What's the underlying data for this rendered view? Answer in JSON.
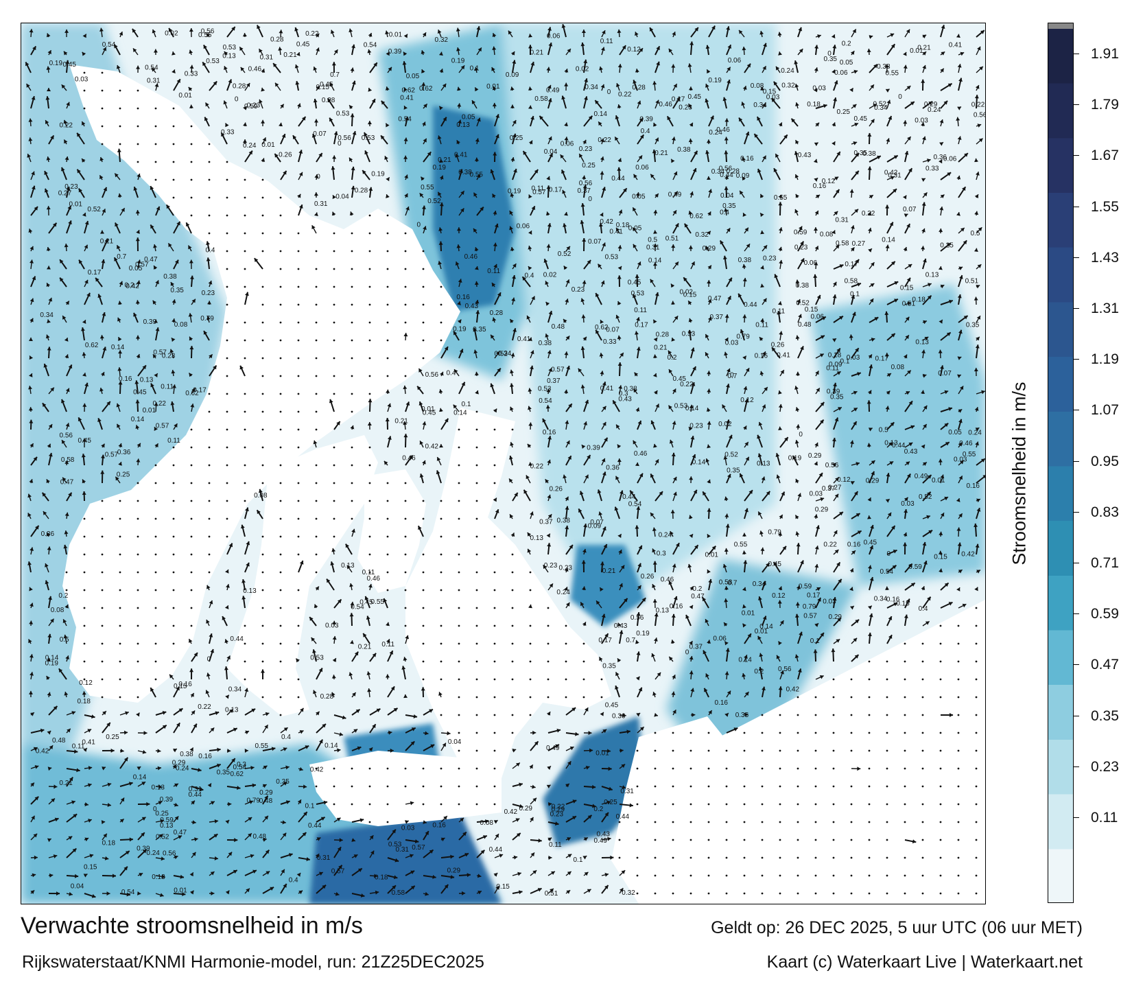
{
  "title": "Verwachte stroomsnelheid in m/s",
  "valid_time": "Geldt op: 26 DEC 2025, 5 uur UTC (06 uur MET)",
  "source": "Rijkswaterstaat/KNMI Harmonie-model, run: 21Z25DEC2025",
  "credit": "Kaart (c) Waterkaart Live | Waterkaart.net",
  "colorbar": {
    "label": "Stroomsnelheid in m/s",
    "ticks": [
      "1.91",
      "1.79",
      "1.67",
      "1.55",
      "1.43",
      "1.31",
      "1.19",
      "1.07",
      "0.95",
      "0.83",
      "0.71",
      "0.59",
      "0.47",
      "0.35",
      "0.23",
      "0.11"
    ],
    "colors": [
      "#eef6f9",
      "#d2ebf2",
      "#b1dde9",
      "#8ecde0",
      "#62b8d3",
      "#3ea2c2",
      "#2e8fb3",
      "#2c7fac",
      "#2e6fa3",
      "#2c619b",
      "#2c568f",
      "#2b4a84",
      "#2a3f76",
      "#263263",
      "#212a54",
      "#1c2345"
    ],
    "top_color": "#888888"
  },
  "map_colors": {
    "land": "#ffffff",
    "sea_low": "#e4f2f7",
    "sea_mid": "#7cc3db",
    "sea_high": "#2f86b3",
    "sea_peak": "#245a95",
    "arrow": "#111111"
  },
  "speed_labels": [
    "0.15",
    "0.08",
    "0.14",
    "0.13",
    "0.05",
    "0.12",
    "0.11",
    "0.09",
    "0.07",
    "0.06",
    "0.02",
    "0.1",
    "0.18",
    "0.17",
    "0.16",
    "0.19",
    "0.21",
    "0.22",
    "0.24",
    "0.25",
    "0.26",
    "0.27",
    "0.28",
    "0.29",
    "0.3",
    "0.31",
    "0.32",
    "0.33",
    "0.34",
    "0.35",
    "0.36",
    "0.37",
    "0.38",
    "0.39",
    "0.4",
    "0.41",
    "0.42",
    "0.43",
    "0.44",
    "0.45",
    "0.46",
    "0.47",
    "0.48",
    "0.49",
    "0.5",
    "0.51",
    "0.52",
    "0.53",
    "0.54",
    "0.55",
    "0.56",
    "0.57",
    "0.58",
    "0.59",
    "0.62",
    "0.7",
    "0.79",
    "0.01",
    "0.03",
    "0.04",
    "0.2",
    "0.23",
    "0"
  ]
}
